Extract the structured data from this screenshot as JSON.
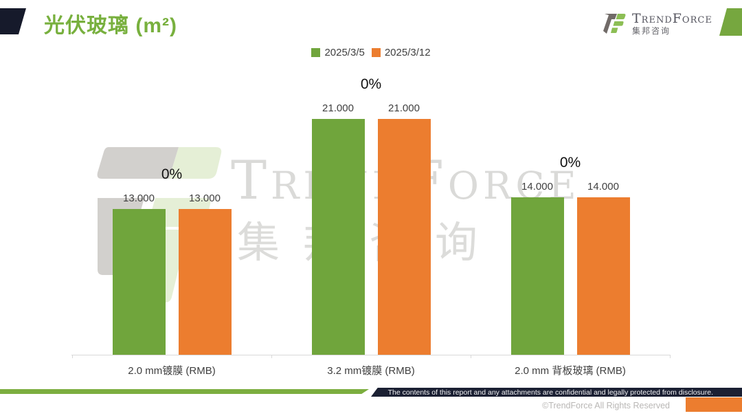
{
  "header": {
    "title": "光伏玻璃 (m²)",
    "logo": {
      "name": "TrendForce",
      "cn": "集邦咨询"
    }
  },
  "legend": {
    "items": [
      {
        "label": "2025/3/5",
        "color": "#70A53C"
      },
      {
        "label": "2025/3/12",
        "color": "#EC7D2F"
      }
    ]
  },
  "chart_data": {
    "type": "bar",
    "title": "光伏玻璃 (m²)",
    "categories": [
      "2.0 mm镀膜 (RMB)",
      "3.2 mm镀膜 (RMB)",
      "2.0 mm 背板玻璃 (RMB)"
    ],
    "series": [
      {
        "name": "2025/3/5",
        "color": "#70A53C",
        "values": [
          13,
          21,
          14
        ],
        "value_labels": [
          "13.000",
          "21.000",
          "14.000"
        ]
      },
      {
        "name": "2025/3/12",
        "color": "#EC7D2F",
        "values": [
          13,
          21,
          14
        ],
        "value_labels": [
          "13.000",
          "21.000",
          "14.000"
        ]
      }
    ],
    "delta_labels": [
      "0%",
      "0%",
      "0%"
    ],
    "ylim": [
      0,
      25.5
    ],
    "grid": false,
    "legend_position": "top-center",
    "xlabel": "",
    "ylabel": ""
  },
  "watermark": {
    "logo_text": "TrendForce",
    "cn_text": "集邦咨询"
  },
  "footer": {
    "confidential": "The contents of this report and any attachments are confidential and legally protected from disclosure.",
    "copyright": "©TrendForce All Rights Reserved"
  },
  "colors": {
    "series1": "#70A53C",
    "series2": "#EC7D2F",
    "title_green": "#78B03E",
    "navy": "#1B2033",
    "footer_green": "#7CAE3F",
    "accent_orange": "#EC7D2F",
    "deco_dark": "#161A2B",
    "deco_green": "#76A73F"
  }
}
